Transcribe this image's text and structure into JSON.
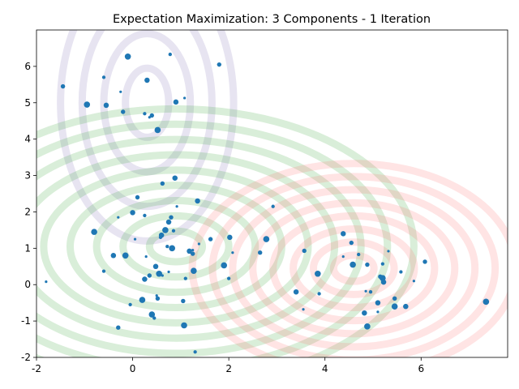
{
  "chart_data": {
    "type": "scatter",
    "title": "Expectation Maximization: 3 Components - 1 Iteration",
    "xlabel": "",
    "ylabel": "",
    "xlim": [
      -2,
      7.8
    ],
    "ylim": [
      -2,
      7
    ],
    "x_ticks": [
      -2,
      0,
      2,
      4,
      6
    ],
    "y_ticks": [
      -2,
      -1,
      0,
      1,
      2,
      3,
      4,
      5,
      6
    ],
    "grid": false,
    "point_color": "#1f77b4",
    "components": [
      {
        "color": "#7b68b0",
        "center": [
          0.3,
          5.0
        ],
        "rx_step": 0.45,
        "ry_step": 0.95,
        "rings": 4
      },
      {
        "color": "#2ca02c",
        "center": [
          0.9,
          1.05
        ],
        "rx_step": 0.55,
        "ry_step": 0.42,
        "rings": 9
      },
      {
        "color": "#ff6b6b",
        "center": [
          4.6,
          0.45
        ],
        "rx_step": 0.42,
        "ry_step": 0.36,
        "rings": 8
      }
    ],
    "points": [
      {
        "x": -1.8,
        "y": 0.08
      },
      {
        "x": -1.45,
        "y": 5.45
      },
      {
        "x": -0.95,
        "y": 4.95
      },
      {
        "x": -0.6,
        "y": 5.7
      },
      {
        "x": -0.55,
        "y": 4.93
      },
      {
        "x": -0.25,
        "y": 5.3
      },
      {
        "x": -0.2,
        "y": 4.75
      },
      {
        "x": -0.1,
        "y": 6.27
      },
      {
        "x": 0.25,
        "y": 4.7
      },
      {
        "x": 0.3,
        "y": 5.62
      },
      {
        "x": 0.35,
        "y": 4.6
      },
      {
        "x": 0.4,
        "y": 4.65
      },
      {
        "x": 0.52,
        "y": 4.25
      },
      {
        "x": 0.78,
        "y": 6.33
      },
      {
        "x": 0.9,
        "y": 5.02
      },
      {
        "x": 1.08,
        "y": 5.13
      },
      {
        "x": 1.8,
        "y": 6.05
      },
      {
        "x": -0.8,
        "y": 1.45
      },
      {
        "x": -0.6,
        "y": 0.37
      },
      {
        "x": -0.4,
        "y": 0.8
      },
      {
        "x": -0.3,
        "y": 1.85
      },
      {
        "x": -0.3,
        "y": -1.18
      },
      {
        "x": -0.15,
        "y": 0.8
      },
      {
        "x": -0.05,
        "y": -0.55
      },
      {
        "x": 0.0,
        "y": 1.98
      },
      {
        "x": 0.05,
        "y": 1.25
      },
      {
        "x": 0.1,
        "y": 2.4
      },
      {
        "x": 0.2,
        "y": -0.42
      },
      {
        "x": 0.25,
        "y": 1.9
      },
      {
        "x": 0.25,
        "y": 0.15
      },
      {
        "x": 0.28,
        "y": 0.77
      },
      {
        "x": 0.35,
        "y": 0.25
      },
      {
        "x": 0.4,
        "y": -0.82
      },
      {
        "x": 0.45,
        "y": -0.92
      },
      {
        "x": 0.48,
        "y": 0.5
      },
      {
        "x": 0.5,
        "y": -0.3
      },
      {
        "x": 0.52,
        "y": -0.38
      },
      {
        "x": 0.55,
        "y": 0.3
      },
      {
        "x": 0.58,
        "y": 1.3
      },
      {
        "x": 0.6,
        "y": 1.36
      },
      {
        "x": 0.62,
        "y": 0.25
      },
      {
        "x": 0.62,
        "y": 2.78
      },
      {
        "x": 0.68,
        "y": 1.5
      },
      {
        "x": 0.72,
        "y": 1.05
      },
      {
        "x": 0.75,
        "y": 1.72
      },
      {
        "x": 0.75,
        "y": 0.35
      },
      {
        "x": 0.8,
        "y": 1.85
      },
      {
        "x": 0.82,
        "y": 1.0
      },
      {
        "x": 0.85,
        "y": 1.48
      },
      {
        "x": 0.88,
        "y": 2.93
      },
      {
        "x": 0.92,
        "y": 2.15
      },
      {
        "x": 1.05,
        "y": -0.45
      },
      {
        "x": 1.07,
        "y": -1.12
      },
      {
        "x": 1.1,
        "y": 0.17
      },
      {
        "x": 1.18,
        "y": 0.92
      },
      {
        "x": 1.25,
        "y": 0.95
      },
      {
        "x": 1.25,
        "y": 0.85
      },
      {
        "x": 1.27,
        "y": 0.38
      },
      {
        "x": 1.3,
        "y": -1.85
      },
      {
        "x": 1.35,
        "y": 2.3
      },
      {
        "x": 1.38,
        "y": 1.12
      },
      {
        "x": 1.62,
        "y": 1.25
      },
      {
        "x": 1.9,
        "y": 0.53
      },
      {
        "x": 2.0,
        "y": 0.17
      },
      {
        "x": 2.02,
        "y": 1.3
      },
      {
        "x": 2.08,
        "y": 0.88
      },
      {
        "x": 2.65,
        "y": 0.88
      },
      {
        "x": 2.78,
        "y": 1.25
      },
      {
        "x": 2.92,
        "y": 2.15
      },
      {
        "x": 3.4,
        "y": -0.2
      },
      {
        "x": 3.55,
        "y": -0.68
      },
      {
        "x": 3.57,
        "y": 0.93
      },
      {
        "x": 3.85,
        "y": 0.3
      },
      {
        "x": 3.88,
        "y": -0.25
      },
      {
        "x": 4.38,
        "y": 1.4
      },
      {
        "x": 4.38,
        "y": 0.77
      },
      {
        "x": 4.55,
        "y": 1.15
      },
      {
        "x": 4.58,
        "y": 0.55
      },
      {
        "x": 4.7,
        "y": 0.83
      },
      {
        "x": 4.82,
        "y": -0.78
      },
      {
        "x": 4.85,
        "y": -0.18
      },
      {
        "x": 4.88,
        "y": 0.55
      },
      {
        "x": 4.88,
        "y": -1.15
      },
      {
        "x": 4.95,
        "y": -0.2
      },
      {
        "x": 5.1,
        "y": -0.5
      },
      {
        "x": 5.1,
        "y": -0.75
      },
      {
        "x": 5.15,
        "y": 0.22
      },
      {
        "x": 5.2,
        "y": 0.18
      },
      {
        "x": 5.2,
        "y": 0.57
      },
      {
        "x": 5.22,
        "y": 0.07
      },
      {
        "x": 5.32,
        "y": 0.92
      },
      {
        "x": 5.45,
        "y": -0.38
      },
      {
        "x": 5.45,
        "y": -0.6
      },
      {
        "x": 5.58,
        "y": 0.35
      },
      {
        "x": 5.68,
        "y": -0.6
      },
      {
        "x": 5.85,
        "y": 0.1
      },
      {
        "x": 6.08,
        "y": 0.63
      },
      {
        "x": 7.35,
        "y": -0.47
      }
    ]
  }
}
